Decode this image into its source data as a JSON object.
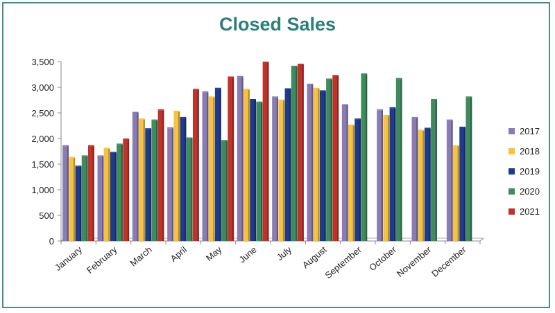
{
  "chart_data": {
    "type": "bar",
    "title": "Closed Sales",
    "categories": [
      "January",
      "February",
      "March",
      "April",
      "May",
      "June",
      "July",
      "August",
      "September",
      "October",
      "November",
      "December"
    ],
    "ylim": [
      0,
      3500
    ],
    "yticks": [
      "0",
      "500",
      "1,000",
      "1,500",
      "2,000",
      "2,500",
      "3,000",
      "3,500"
    ],
    "ytick_values": [
      0,
      500,
      1000,
      1500,
      2000,
      2500,
      3000,
      3500
    ],
    "grid": false,
    "legend_position": "right",
    "series": [
      {
        "name": "2017",
        "color": "#8a7bb5",
        "values": [
          1850,
          1650,
          2500,
          2200,
          2900,
          3200,
          2800,
          3050,
          2650,
          2550,
          2400,
          2350
        ]
      },
      {
        "name": "2018",
        "color": "#f5c242",
        "values": [
          1620,
          1800,
          2370,
          2520,
          2800,
          2950,
          2740,
          2970,
          2250,
          2440,
          2150,
          1850
        ]
      },
      {
        "name": "2019",
        "color": "#1f3a8a",
        "values": [
          1450,
          1720,
          2180,
          2400,
          2970,
          2750,
          2960,
          2920,
          2370,
          2590,
          2190,
          2210
        ]
      },
      {
        "name": "2020",
        "color": "#3f8a5e",
        "values": [
          1650,
          1880,
          2350,
          2000,
          1950,
          2700,
          3400,
          3150,
          3250,
          3160,
          2750,
          2800
        ]
      },
      {
        "name": "2021",
        "color": "#c0332b",
        "values": [
          1850,
          1980,
          2550,
          2950,
          3190,
          3480,
          3440,
          3220,
          null,
          null,
          null,
          null
        ]
      }
    ]
  }
}
